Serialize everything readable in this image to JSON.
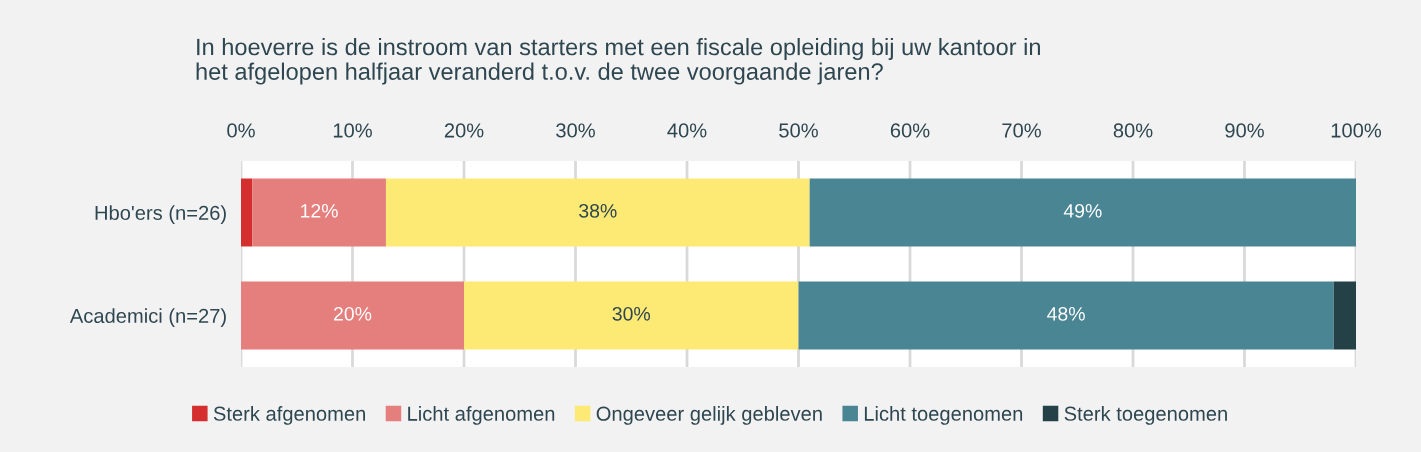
{
  "chart_data": {
    "type": "bar",
    "orientation": "horizontal",
    "stacked": true,
    "title": "In hoeverre is de instroom van starters met een fiscale opleiding bij uw kantoor in\nhet afgelopen halfjaar veranderd t.o.v. de twee voorgaande jaren?",
    "categories": [
      "Hbo'ers (n=26)",
      "Academici (n=27)"
    ],
    "series": [
      {
        "name": "Sterk afgenomen",
        "color": "#d42e2e",
        "values": [
          1,
          0
        ],
        "value_labels": [
          null,
          null
        ]
      },
      {
        "name": "Licht afgenomen",
        "color": "#e57f7d",
        "values": [
          12,
          20
        ],
        "value_labels": [
          "12%",
          "20%"
        ]
      },
      {
        "name": "Ongeveer gelijk gebleven",
        "color": "#fdea74",
        "values": [
          38,
          30
        ],
        "value_labels": [
          "38%",
          "30%"
        ]
      },
      {
        "name": "Licht toegenomen",
        "color": "#4a8593",
        "values": [
          49,
          48
        ],
        "value_labels": [
          "49%",
          "48%"
        ]
      },
      {
        "name": "Sterk toegenomen",
        "color": "#244148",
        "values": [
          0,
          2
        ],
        "value_labels": [
          null,
          null
        ]
      }
    ],
    "xlim": [
      0,
      100
    ],
    "xticks": [
      {
        "value": 0,
        "label": "0%"
      },
      {
        "value": 10,
        "label": "10%"
      },
      {
        "value": 20,
        "label": "20%"
      },
      {
        "value": 30,
        "label": "30%"
      },
      {
        "value": 40,
        "label": "40%"
      },
      {
        "value": 50,
        "label": "50%"
      },
      {
        "value": 60,
        "label": "60%"
      },
      {
        "value": 70,
        "label": "70%"
      },
      {
        "value": 80,
        "label": "80%"
      },
      {
        "value": 90,
        "label": "90%"
      },
      {
        "value": 100,
        "label": "100%"
      }
    ],
    "grid": "x",
    "legend": "bottom"
  }
}
